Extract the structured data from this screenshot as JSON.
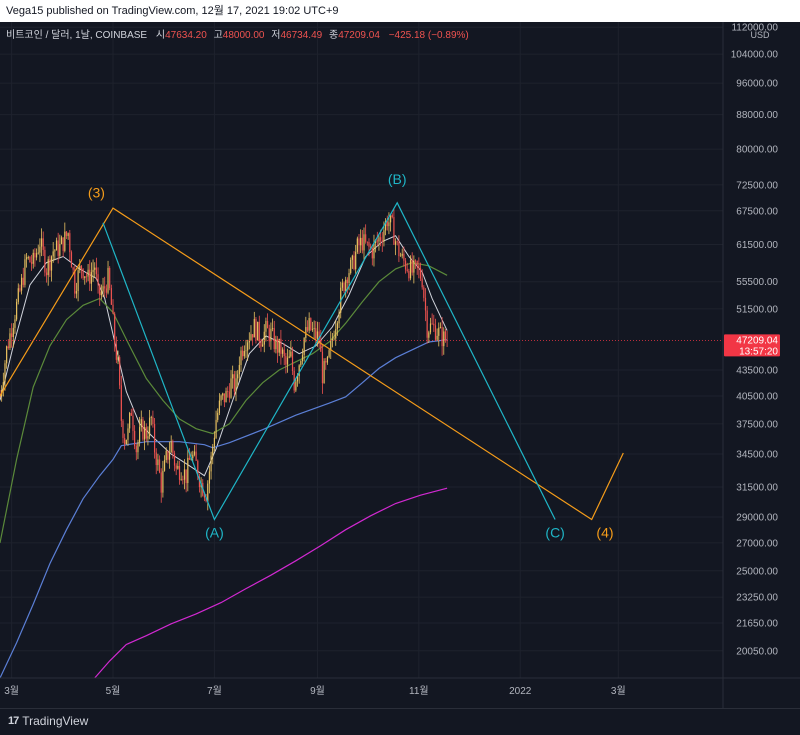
{
  "header": {
    "publisher": "Vega15 published on TradingView.com, 12월 17, 2021 19:02 UTC+9"
  },
  "footer": {
    "logo_mark": "17",
    "logo_text": "TradingView"
  },
  "colors": {
    "background": "#131722",
    "grid": "#1e222d",
    "candle_up": "#e8c160",
    "candle_down": "#ef5350",
    "orange_wave": "#f59c1a",
    "teal_wave": "#1fb6c7",
    "ma_white": "#d1d4dc",
    "ma_green": "#5b8a3a",
    "ma_blue": "#5b7fd6",
    "ma_magenta": "#d129d1",
    "price_tag": "#f23645"
  },
  "chart_data": {
    "type": "candlestick",
    "symbol_line": {
      "name": "비트코인 / 달러, 1날, COINBASE",
      "open_label": "시",
      "open": "47634.20",
      "high_label": "고",
      "high": "48000.00",
      "low_label": "저",
      "low": "46734.49",
      "close_label": "종",
      "close": "47209.04",
      "change": "−425.18 (−0.89%)"
    },
    "y_scale": "log",
    "ylim": [
      18600,
      113000
    ],
    "currency": "USD",
    "y_ticks": [
      "112000.00",
      "104000.00",
      "96000.00",
      "88000.00",
      "80000.00",
      "72500.00",
      "67500.00",
      "61500.00",
      "55500.00",
      "51500.00",
      "43500.00",
      "40500.00",
      "37500.00",
      "34500.00",
      "31500.00",
      "29000.00",
      "27000.00",
      "25000.00",
      "23250.00",
      "21650.00",
      "20050.00"
    ],
    "x_ticks": [
      "3월",
      "5월",
      "7월",
      "9월",
      "11월",
      "2022",
      "3월"
    ],
    "x_tick_days": [
      59,
      120,
      181,
      243,
      304,
      365,
      424
    ],
    "x_range_days": [
      52,
      487
    ],
    "last_price": {
      "value": 47209.04,
      "label": "47209.04",
      "countdown": "13:57:20"
    },
    "price_series": [
      [
        52,
        40500
      ],
      [
        56,
        46000
      ],
      [
        60,
        50000
      ],
      [
        64,
        54000
      ],
      [
        68,
        59000
      ],
      [
        72,
        58500
      ],
      [
        76,
        62000
      ],
      [
        80,
        57500
      ],
      [
        84,
        60500
      ],
      [
        88,
        61000
      ],
      [
        93,
        63500
      ],
      [
        95,
        59000
      ],
      [
        97,
        55000
      ],
      [
        101,
        58000
      ],
      [
        105,
        56000
      ],
      [
        109,
        58000
      ],
      [
        111,
        53500
      ],
      [
        114,
        54000
      ],
      [
        117,
        56000
      ],
      [
        119,
        52000
      ],
      [
        121,
        47000
      ],
      [
        123,
        44000
      ],
      [
        125,
        38000
      ],
      [
        127,
        36000
      ],
      [
        129,
        36500
      ],
      [
        131,
        39000
      ],
      [
        134,
        35000
      ],
      [
        137,
        37000
      ],
      [
        140,
        36500
      ],
      [
        143,
        38000
      ],
      [
        145,
        35000
      ],
      [
        147,
        33500
      ],
      [
        149,
        31700
      ],
      [
        152,
        34000
      ],
      [
        155,
        35500
      ],
      [
        158,
        33000
      ],
      [
        161,
        33200
      ],
      [
        164,
        32500
      ],
      [
        167,
        34500
      ],
      [
        170,
        33500
      ],
      [
        173,
        31800
      ],
      [
        176,
        31000
      ],
      [
        179,
        34000
      ],
      [
        182,
        38000
      ],
      [
        185,
        40000
      ],
      [
        188,
        40500
      ],
      [
        191,
        42000
      ],
      [
        194,
        41500
      ],
      [
        196,
        45000
      ],
      [
        199,
        47000
      ],
      [
        202,
        48000
      ],
      [
        205,
        49000
      ],
      [
        209,
        47500
      ],
      [
        212,
        48500
      ],
      [
        215,
        48000
      ],
      [
        218,
        46500
      ],
      [
        221,
        46000
      ],
      [
        224,
        44000
      ],
      [
        227,
        45000
      ],
      [
        229,
        42000
      ],
      [
        232,
        44500
      ],
      [
        235,
        47500
      ],
      [
        238,
        49000
      ],
      [
        241,
        48000
      ],
      [
        244,
        47500
      ],
      [
        246,
        43000
      ],
      [
        249,
        44000
      ],
      [
        252,
        47500
      ],
      [
        255,
        51000
      ],
      [
        258,
        54500
      ],
      [
        261,
        57000
      ],
      [
        264,
        58000
      ],
      [
        267,
        61000
      ],
      [
        270,
        62000
      ],
      [
        273,
        61000
      ],
      [
        276,
        60500
      ],
      [
        279,
        62000
      ],
      [
        282,
        63500
      ],
      [
        285,
        66000
      ],
      [
        288,
        64500
      ],
      [
        291,
        61000
      ],
      [
        294,
        59000
      ],
      [
        297,
        58000
      ],
      [
        300,
        57000
      ],
      [
        303,
        57500
      ],
      [
        306,
        56000
      ],
      [
        309,
        49000
      ],
      [
        312,
        49000
      ],
      [
        315,
        48500
      ],
      [
        318,
        47600
      ],
      [
        321,
        47209
      ]
    ],
    "moving_averages": [
      {
        "points": [
          [
            52,
            40000
          ],
          [
            60,
            46500
          ],
          [
            70,
            55000
          ],
          [
            80,
            58500
          ],
          [
            90,
            59500
          ],
          [
            100,
            57500
          ],
          [
            110,
            56000
          ],
          [
            115,
            53000
          ],
          [
            120,
            48000
          ],
          [
            128,
            41000
          ],
          [
            136,
            37500
          ],
          [
            145,
            36000
          ],
          [
            155,
            34500
          ],
          [
            165,
            33500
          ],
          [
            175,
            32500
          ],
          [
            182,
            35000
          ],
          [
            192,
            40000
          ],
          [
            202,
            45500
          ],
          [
            212,
            47800
          ],
          [
            222,
            46800
          ],
          [
            232,
            45500
          ],
          [
            242,
            46500
          ],
          [
            252,
            49000
          ],
          [
            262,
            53500
          ],
          [
            272,
            59500
          ],
          [
            282,
            62000
          ],
          [
            290,
            63000
          ],
          [
            298,
            59500
          ],
          [
            306,
            57000
          ],
          [
            312,
            53000
          ],
          [
            321,
            48500
          ]
        ]
      },
      {
        "points": [
          [
            52,
            27000
          ],
          [
            62,
            34000
          ],
          [
            72,
            41500
          ],
          [
            82,
            46500
          ],
          [
            92,
            50000
          ],
          [
            102,
            52000
          ],
          [
            112,
            53000
          ],
          [
            120,
            51000
          ],
          [
            130,
            46500
          ],
          [
            140,
            42500
          ],
          [
            150,
            40000
          ],
          [
            160,
            38000
          ],
          [
            170,
            37000
          ],
          [
            180,
            36500
          ],
          [
            190,
            37500
          ],
          [
            200,
            40000
          ],
          [
            210,
            42000
          ],
          [
            220,
            43500
          ],
          [
            230,
            44500
          ],
          [
            240,
            45500
          ],
          [
            250,
            47000
          ],
          [
            260,
            49500
          ],
          [
            270,
            52500
          ],
          [
            280,
            55500
          ],
          [
            290,
            57500
          ],
          [
            300,
            58500
          ],
          [
            310,
            58000
          ],
          [
            321,
            56500
          ]
        ]
      },
      {
        "points": [
          [
            52,
            18600
          ],
          [
            62,
            20500
          ],
          [
            72,
            22800
          ],
          [
            82,
            25500
          ],
          [
            92,
            28000
          ],
          [
            102,
            30500
          ],
          [
            112,
            32500
          ],
          [
            120,
            34000
          ],
          [
            125,
            35300
          ],
          [
            140,
            35700
          ],
          [
            160,
            35700
          ],
          [
            175,
            35400
          ],
          [
            180,
            35100
          ],
          [
            190,
            35600
          ],
          [
            210,
            36900
          ],
          [
            230,
            38400
          ],
          [
            250,
            39700
          ],
          [
            260,
            40400
          ],
          [
            270,
            42000
          ],
          [
            280,
            43700
          ],
          [
            290,
            45000
          ],
          [
            300,
            46000
          ],
          [
            310,
            47000
          ],
          [
            321,
            47300
          ]
        ]
      },
      {
        "points": [
          [
            109,
            18600
          ],
          [
            118,
            19500
          ],
          [
            128,
            20400
          ],
          [
            140,
            20900
          ],
          [
            155,
            21600
          ],
          [
            170,
            22200
          ],
          [
            185,
            22900
          ],
          [
            200,
            23800
          ],
          [
            215,
            24700
          ],
          [
            230,
            25700
          ],
          [
            245,
            26800
          ],
          [
            260,
            28000
          ],
          [
            275,
            29100
          ],
          [
            290,
            30100
          ],
          [
            305,
            30800
          ],
          [
            321,
            31400
          ]
        ]
      }
    ],
    "wave_orange": {
      "points": [
        [
          52,
          40500
        ],
        [
          120,
          68000
        ],
        [
          408,
          28800
        ],
        [
          427,
          34600
        ]
      ],
      "labels": [
        {
          "text": "(3)",
          "x": 110,
          "y": 70000
        },
        {
          "text": "(4)",
          "x": 416,
          "y": 27400
        }
      ]
    },
    "wave_teal": {
      "points": [
        [
          114,
          65300
        ],
        [
          181,
          28800
        ],
        [
          291,
          69000
        ],
        [
          386,
          28800
        ]
      ],
      "labels": [
        {
          "text": "(A)",
          "x": 181,
          "y": 27400
        },
        {
          "text": "(B)",
          "x": 291,
          "y": 72700
        },
        {
          "text": "(C)",
          "x": 386,
          "y": 27400
        }
      ]
    }
  }
}
